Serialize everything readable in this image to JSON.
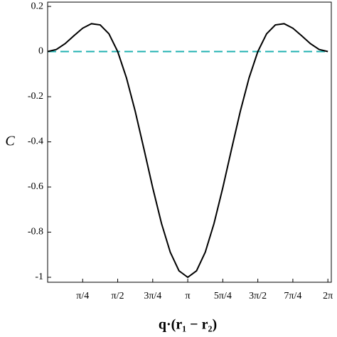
{
  "chart_data": {
    "type": "line",
    "ylabel": "C",
    "xlabel": "q·(r₁ − r₂)",
    "x": [
      0,
      0.19635,
      0.3927,
      0.58905,
      0.7854,
      0.98175,
      1.1781,
      1.37445,
      1.5708,
      1.76715,
      1.9635,
      2.15985,
      2.3562,
      2.55255,
      2.7489,
      2.94524,
      3.14159,
      3.33794,
      3.53429,
      3.73064,
      3.92699,
      4.12334,
      4.31969,
      4.51604,
      4.71239,
      4.90874,
      5.10509,
      5.30144,
      5.49779,
      5.69414,
      5.89049,
      6.08684,
      6.28319
    ],
    "series": [
      {
        "color": "#000000",
        "dash": "solid",
        "values": [
          0,
          0.00942,
          0.03516,
          0.07006,
          0.10355,
          0.12346,
          0.11812,
          0.07852,
          0,
          -0.11658,
          -0.26456,
          -0.43211,
          -0.60355,
          -0.76141,
          -0.88872,
          -0.97137,
          -1,
          -0.97137,
          -0.88872,
          -0.76141,
          -0.60355,
          -0.43211,
          -0.26456,
          -0.11658,
          0,
          0.07852,
          0.11812,
          0.12346,
          0.10355,
          0.07006,
          0.03516,
          0.00942,
          0
        ]
      },
      {
        "color": "#20b2b2",
        "dash": "dashed",
        "values": [
          0,
          0,
          0,
          0,
          0,
          0,
          0,
          0,
          0,
          0,
          0,
          0,
          0,
          0,
          0,
          0,
          0,
          0,
          0,
          0,
          0,
          0,
          0,
          0,
          0,
          0,
          0,
          0,
          0,
          0,
          0,
          0,
          0
        ]
      }
    ],
    "xlim": [
      0,
      6.36
    ],
    "ylim": [
      -1.022,
      0.219
    ],
    "xticks": [
      {
        "value": 0.7854,
        "label": "π/4"
      },
      {
        "value": 1.5708,
        "label": "π/2"
      },
      {
        "value": 2.3562,
        "label": "3π/4"
      },
      {
        "value": 3.14159,
        "label": "π"
      },
      {
        "value": 3.92699,
        "label": "5π/4"
      },
      {
        "value": 4.71239,
        "label": "3π/2"
      },
      {
        "value": 5.49779,
        "label": "7π/4"
      },
      {
        "value": 6.28319,
        "label": "2π"
      }
    ],
    "yticks": [
      0.2,
      0,
      -0.2,
      -0.4,
      -0.6,
      -0.8,
      -1
    ]
  }
}
